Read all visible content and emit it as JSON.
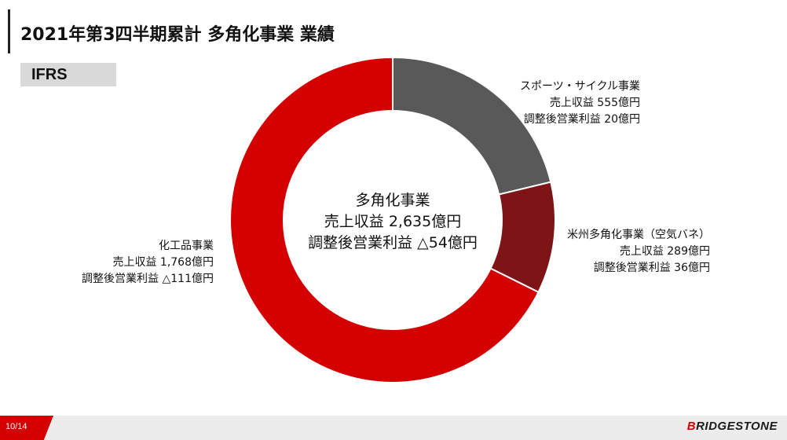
{
  "slide": {
    "title": "2021年第3四半期累計 多角化事業 業績",
    "badge": "IFRS",
    "page_number": "10/14",
    "logo_text": "BRIDGESTONE"
  },
  "center": {
    "name": "多角化事業",
    "revenue": "売上収益 2,635億円",
    "profit": "調整後営業利益 △54億円"
  },
  "labels": {
    "chemical": {
      "name": "化工品事業",
      "revenue": "売上収益 1,768億円",
      "profit": "調整後営業利益 △111億円"
    },
    "sports": {
      "name": "スポーツ・サイクル事業",
      "revenue": "売上収益 555億円",
      "profit": "調整後営業利益 20億円"
    },
    "us": {
      "name": "米州多角化事業（空気バネ）",
      "revenue": "売上収益 289億円",
      "profit": "調整後営業利益 36億円"
    }
  },
  "chart_data": {
    "type": "pie",
    "donut": true,
    "categories": [
      "スポーツ・サイクル事業",
      "米州多角化事業（空気バネ）",
      "化工品事業"
    ],
    "values": [
      555,
      289,
      1768
    ],
    "colors": [
      "#595959",
      "#7d1416",
      "#d40000"
    ]
  }
}
